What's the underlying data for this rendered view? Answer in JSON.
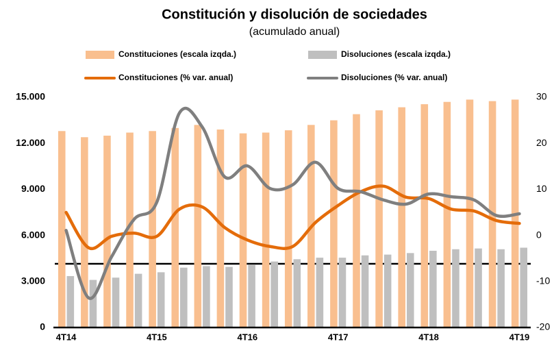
{
  "chart_data": {
    "type": "bar-line",
    "title": "Constitución y disolución de sociedades",
    "subtitle": "(acumulado anual)",
    "categories": [
      "4T14",
      null,
      null,
      null,
      "4T15",
      null,
      null,
      null,
      "4T16",
      null,
      null,
      null,
      "4T17",
      null,
      null,
      null,
      "4T18",
      null,
      null,
      null,
      "4T19"
    ],
    "series": [
      {
        "name": "Constituciones (escala izqda.)",
        "color": "#f9bf8f",
        "kind": "bar",
        "values": [
          12800,
          12400,
          12500,
          12700,
          12800,
          13000,
          13200,
          12900,
          12650,
          12700,
          12850,
          13200,
          13500,
          13900,
          14150,
          14350,
          14550,
          14700,
          14850,
          14750,
          14850
        ]
      },
      {
        "name": "Disoluciones (escala izqda.)",
        "color": "#bfbfbf",
        "kind": "bar",
        "values": [
          3350,
          3100,
          3250,
          3500,
          3600,
          3900,
          4000,
          3950,
          4100,
          4300,
          4450,
          4550,
          4550,
          4700,
          4750,
          4850,
          5000,
          5100,
          5150,
          5100,
          5200
        ]
      },
      {
        "name": "Constituciones (% var. anual)",
        "color": "#e46c0a",
        "kind": "line",
        "axis": "y2",
        "values": [
          5.0,
          -2.7,
          -0.2,
          0.5,
          -0.2,
          5.7,
          6.2,
          1.7,
          -1.0,
          -2.4,
          -2.4,
          2.8,
          6.5,
          9.5,
          10.7,
          8.3,
          8.0,
          5.7,
          5.3,
          3.2,
          2.6
        ]
      },
      {
        "name": "Disoluciones (% var. anual)",
        "color": "#7f7f7f",
        "kind": "line",
        "axis": "y2",
        "values": [
          1.1,
          -13.6,
          -4.7,
          3.5,
          7.2,
          26.6,
          23.6,
          12.7,
          15.1,
          10.2,
          11.0,
          15.9,
          10.2,
          9.5,
          7.7,
          6.8,
          9.0,
          8.4,
          7.7,
          4.3,
          4.7
        ]
      }
    ],
    "ylim": [
      0,
      15000
    ],
    "yticks": [
      0,
      {
        "value": 3000,
        "label": "3.000"
      },
      {
        "value": 6000,
        "label": "6.000"
      },
      {
        "value": 9000,
        "label": "9.000"
      },
      {
        "value": 12000,
        "label": "12.000"
      },
      {
        "value": 15000,
        "label": "15.000"
      }
    ],
    "y2lim": [
      -20,
      30
    ],
    "y2ticks": [
      -20,
      -10,
      0,
      10,
      20,
      30
    ]
  }
}
